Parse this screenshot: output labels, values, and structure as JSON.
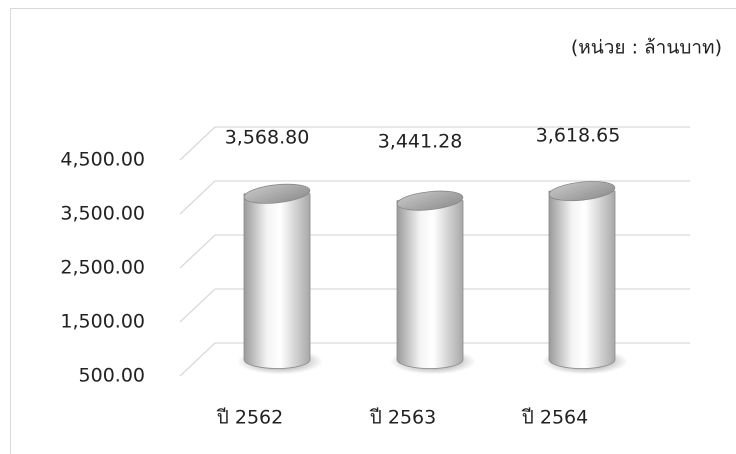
{
  "chart_data": {
    "type": "bar",
    "annotation": "(หน่วย : ล้านบาท)",
    "categories": [
      "ปี 2562",
      "ปี 2563",
      "ปี 2564"
    ],
    "values": [
      3568.8,
      3441.28,
      3618.65
    ],
    "value_labels": [
      "3,568.80",
      "3,441.28",
      "3,618.65"
    ],
    "ylim": [
      500,
      4500
    ],
    "yticks": [
      {
        "value": 500,
        "label": "500.00"
      },
      {
        "value": 1500,
        "label": "1,500.00"
      },
      {
        "value": 2500,
        "label": "2,500.00"
      },
      {
        "value": 3500,
        "label": "3,500.00"
      },
      {
        "value": 4500,
        "label": "4,500.00"
      }
    ],
    "grid": true,
    "color": "#d9d9d9"
  }
}
